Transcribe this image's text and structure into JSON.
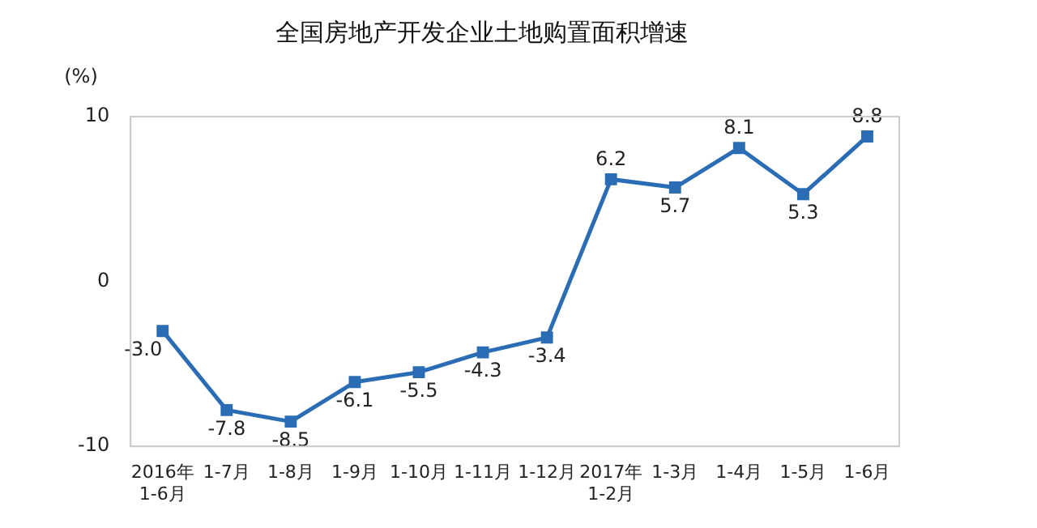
{
  "chart_data": {
    "type": "line",
    "title": "全国房地产开发企业土地购置面积增速",
    "ylabel": "(%)",
    "categories": [
      "2016年\n1-6月",
      "1-7月",
      "1-8月",
      "1-9月",
      "1-10月",
      "1-11月",
      "1-12月",
      "2017年\n1-2月",
      "1-3月",
      "1-4月",
      "1-5月",
      "1-6月"
    ],
    "series": [
      {
        "color": "#2a6db5",
        "values": [
          -3.0,
          -7.8,
          -8.5,
          -6.1,
          -5.5,
          -4.3,
          -3.4,
          6.2,
          5.7,
          8.1,
          5.3,
          8.8
        ]
      }
    ],
    "ylim": [
      -10,
      10
    ],
    "yticks": [
      -10,
      0,
      10
    ],
    "grid": false,
    "legend": false,
    "marker": "square",
    "line_style": "solid",
    "value_labels": [
      "-3.0",
      "-7.8",
      "-8.5",
      "-6.1",
      "-5.5",
      "-4.3",
      "-3.4",
      "6.2",
      "5.7",
      "8.1",
      "5.3",
      "8.8"
    ]
  }
}
